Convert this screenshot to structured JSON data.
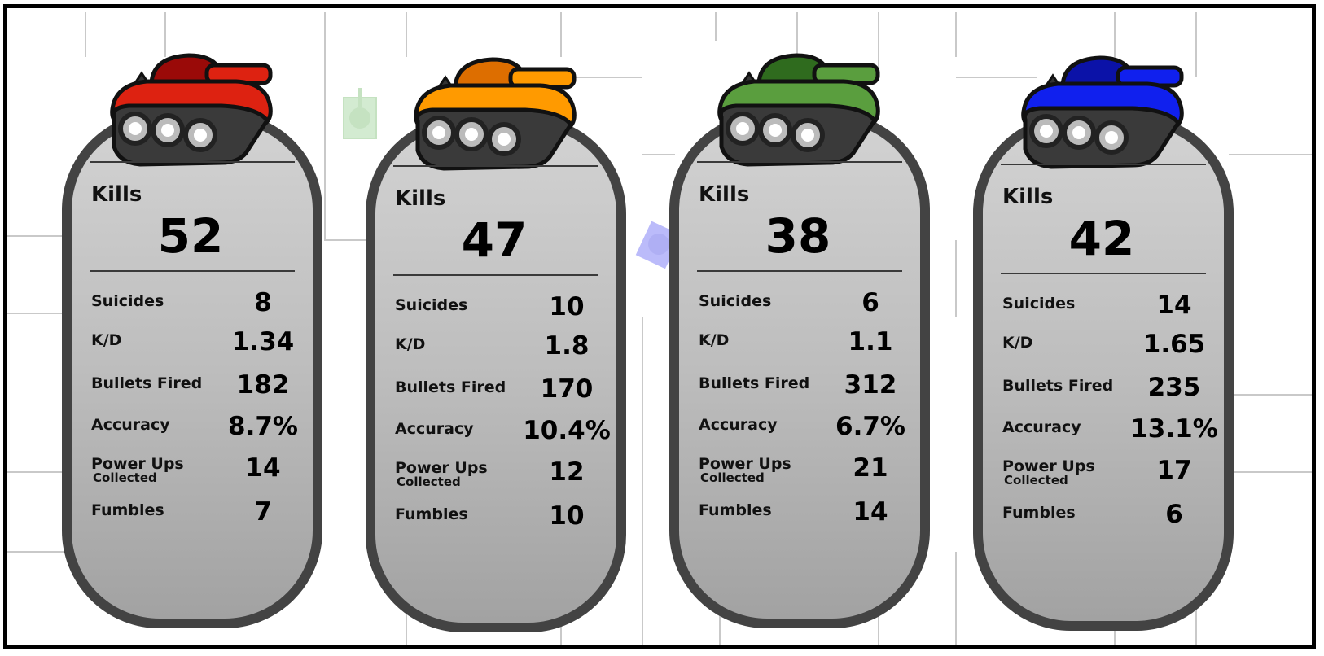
{
  "labels": {
    "kills": "Kills",
    "suicides": "Suicides",
    "kd": "K/D",
    "bullets_fired": "Bullets Fired",
    "accuracy": "Accuracy",
    "power_ups": "Power Ups",
    "collected": "Collected",
    "fumbles": "Fumbles"
  },
  "players": [
    {
      "color": "red",
      "body": "#dd2211",
      "turret": "#9a0a08",
      "kills": "52",
      "suicides": "8",
      "kd": "1.34",
      "bullets_fired": "182",
      "accuracy": "8.7%",
      "power_ups": "14",
      "fumbles": "7"
    },
    {
      "color": "orange",
      "body": "#ff9a00",
      "turret": "#dd6e00",
      "kills": "47",
      "suicides": "10",
      "kd": "1.8",
      "bullets_fired": "170",
      "accuracy": "10.4%",
      "power_ups": "12",
      "fumbles": "10"
    },
    {
      "color": "green",
      "body": "#5a9e3e",
      "turret": "#2f6b1e",
      "kills": "38",
      "suicides": "6",
      "kd": "1.1",
      "bullets_fired": "312",
      "accuracy": "6.7%",
      "power_ups": "21",
      "fumbles": "14"
    },
    {
      "color": "blue",
      "body": "#1020ee",
      "turret": "#0b12a8",
      "kills": "42",
      "suicides": "14",
      "kd": "1.65",
      "bullets_fired": "235",
      "accuracy": "13.1%",
      "power_ups": "17",
      "fumbles": "6"
    }
  ]
}
